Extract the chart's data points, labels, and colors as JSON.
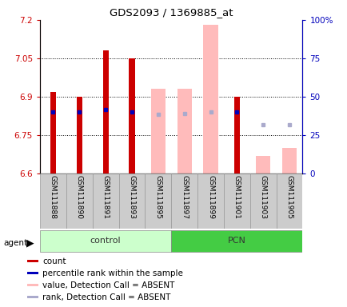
{
  "title": "GDS2093 / 1369885_at",
  "samples": [
    "GSM111888",
    "GSM111890",
    "GSM111891",
    "GSM111893",
    "GSM111895",
    "GSM111897",
    "GSM111899",
    "GSM111901",
    "GSM111903",
    "GSM111905"
  ],
  "groups": [
    "control",
    "control",
    "control",
    "control",
    "control",
    "PCN",
    "PCN",
    "PCN",
    "PCN",
    "PCN"
  ],
  "ylim_left": [
    6.6,
    7.2
  ],
  "ylim_right": [
    0,
    100
  ],
  "yticks_left": [
    6.6,
    6.75,
    6.9,
    7.05,
    7.2
  ],
  "yticks_right": [
    0,
    25,
    50,
    75,
    100
  ],
  "ytick_labels_left": [
    "6.6",
    "6.75",
    "6.9",
    "7.05",
    "7.2"
  ],
  "ytick_labels_right": [
    "0",
    "25",
    "50",
    "75",
    "100%"
  ],
  "red_bars": [
    6.92,
    6.9,
    7.08,
    7.05,
    null,
    null,
    null,
    6.9,
    null,
    null
  ],
  "blue_squares": [
    6.84,
    6.84,
    6.85,
    6.84,
    null,
    null,
    null,
    6.84,
    null,
    null
  ],
  "pink_bars": [
    null,
    null,
    null,
    null,
    6.93,
    6.93,
    7.18,
    null,
    6.67,
    6.7
  ],
  "lavender_squares": [
    null,
    null,
    null,
    null,
    6.83,
    6.835,
    6.84,
    null,
    6.79,
    6.79
  ],
  "control_group_range": [
    0,
    4
  ],
  "pcn_group_range": [
    5,
    9
  ],
  "ybase": 6.6,
  "red_color": "#cc0000",
  "blue_color": "#0000bb",
  "pink_color": "#ffbbbb",
  "lavender_color": "#aaaacc",
  "control_fill": "#ccffcc",
  "pcn_fill": "#44cc44",
  "left_axis_color": "#cc0000",
  "right_axis_color": "#0000bb",
  "grid_color": "#000000",
  "cell_bg": "#cccccc",
  "cell_edge": "#999999"
}
